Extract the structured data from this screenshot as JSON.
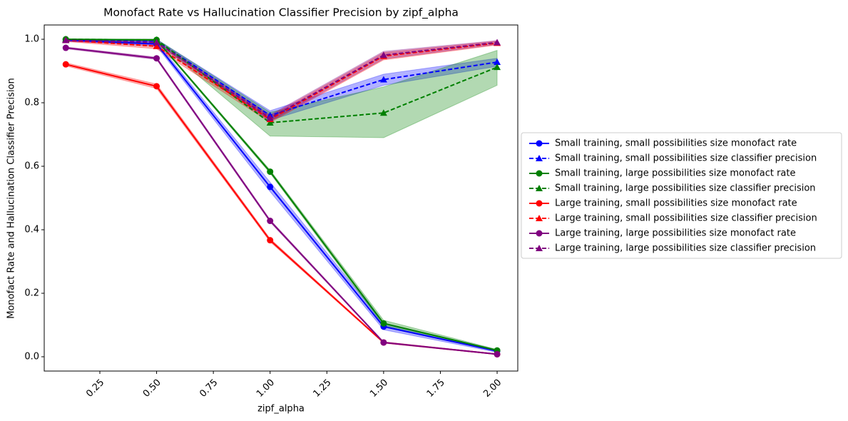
{
  "chart_data": {
    "type": "line",
    "title": "Monofact Rate vs Hallucination Classifier Precision by zipf_alpha",
    "xlabel": "zipf_alpha",
    "ylabel": "Monofact Rate and Hallucination Classifier Precision",
    "x": [
      0.1,
      0.5,
      1.0,
      1.5,
      2.0
    ],
    "xlim": [
      0.005,
      2.091
    ],
    "ylim": [
      -0.045,
      1.045
    ],
    "xticks": [
      {
        "value": 0.25,
        "label": "0.25"
      },
      {
        "value": 0.5,
        "label": "0.50"
      },
      {
        "value": 0.75,
        "label": "0.75"
      },
      {
        "value": 1.0,
        "label": "1.00"
      },
      {
        "value": 1.25,
        "label": "1.25"
      },
      {
        "value": 1.5,
        "label": "1.50"
      },
      {
        "value": 1.75,
        "label": "1.75"
      },
      {
        "value": 2.0,
        "label": "2.00"
      }
    ],
    "yticks": [
      {
        "value": 0,
        "label": "0.0"
      },
      {
        "value": 0.2,
        "label": "0.2"
      },
      {
        "value": 0.4,
        "label": "0.4"
      },
      {
        "value": 0.6,
        "label": "0.6"
      },
      {
        "value": 0.8,
        "label": "0.8"
      },
      {
        "value": 1.0,
        "label": "1.0"
      }
    ],
    "legend": "outside-right",
    "series": [
      {
        "name": "Small training, small possibilities size monofact rate",
        "color": "#0000ff",
        "marker": "circle",
        "linestyle": "solid",
        "values": [
          0.998,
          0.985,
          0.535,
          0.095,
          0.018
        ],
        "lower": [
          0.995,
          0.978,
          0.52,
          0.085,
          0.014
        ],
        "upper": [
          1.0,
          0.992,
          0.55,
          0.105,
          0.022
        ]
      },
      {
        "name": "Small training, small possibilities size classifier precision",
        "color": "#0000ff",
        "marker": "triangle",
        "linestyle": "dashed",
        "values": [
          0.998,
          0.995,
          0.76,
          0.873,
          0.928
        ],
        "lower": [
          0.995,
          0.99,
          0.745,
          0.855,
          0.915
        ],
        "upper": [
          1.0,
          1.0,
          0.775,
          0.89,
          0.94
        ]
      },
      {
        "name": "Small training, large possibilities size monofact rate",
        "color": "#008000",
        "marker": "circle",
        "linestyle": "solid",
        "values": [
          1.0,
          0.998,
          0.583,
          0.105,
          0.02
        ],
        "lower": [
          0.998,
          0.995,
          0.578,
          0.098,
          0.017
        ],
        "upper": [
          1.0,
          1.0,
          0.588,
          0.115,
          0.023
        ]
      },
      {
        "name": "Small training, large possibilities size classifier precision",
        "color": "#008000",
        "marker": "triangle",
        "linestyle": "dashed",
        "values": [
          1.0,
          0.998,
          0.737,
          0.768,
          0.912
        ],
        "lower": [
          0.997,
          0.995,
          0.695,
          0.69,
          0.855
        ],
        "upper": [
          1.0,
          1.0,
          0.77,
          0.85,
          0.965
        ]
      },
      {
        "name": "Large training, small possibilities size monofact rate",
        "color": "#ff0000",
        "marker": "circle",
        "linestyle": "solid",
        "values": [
          0.921,
          0.852,
          0.367,
          0.045,
          0.008
        ],
        "lower": [
          0.916,
          0.845,
          0.362,
          0.043,
          0.007
        ],
        "upper": [
          0.926,
          0.859,
          0.372,
          0.047,
          0.009
        ]
      },
      {
        "name": "Large  training, small possibilities size classifier precision",
        "color": "#ff0000",
        "marker": "triangle",
        "linestyle": "dashed",
        "values": [
          0.997,
          0.978,
          0.748,
          0.947,
          0.988
        ],
        "lower": [
          0.993,
          0.97,
          0.738,
          0.935,
          0.982
        ],
        "upper": [
          1.0,
          0.986,
          0.758,
          0.958,
          0.994
        ]
      },
      {
        "name": "Large training, large possibilities size monofact rate",
        "color": "#800080",
        "marker": "circle",
        "linestyle": "solid",
        "values": [
          0.973,
          0.94,
          0.428,
          0.045,
          0.008
        ],
        "lower": [
          0.97,
          0.936,
          0.424,
          0.043,
          0.007
        ],
        "upper": [
          0.976,
          0.944,
          0.432,
          0.047,
          0.009
        ]
      },
      {
        "name": "Large training, large possibilities size classifier precision",
        "color": "#800080",
        "marker": "triangle",
        "linestyle": "dashed",
        "values": [
          0.997,
          0.99,
          0.752,
          0.95,
          0.99
        ],
        "lower": [
          0.993,
          0.984,
          0.742,
          0.938,
          0.984
        ],
        "upper": [
          1.0,
          0.996,
          0.762,
          0.962,
          0.996
        ]
      }
    ]
  }
}
